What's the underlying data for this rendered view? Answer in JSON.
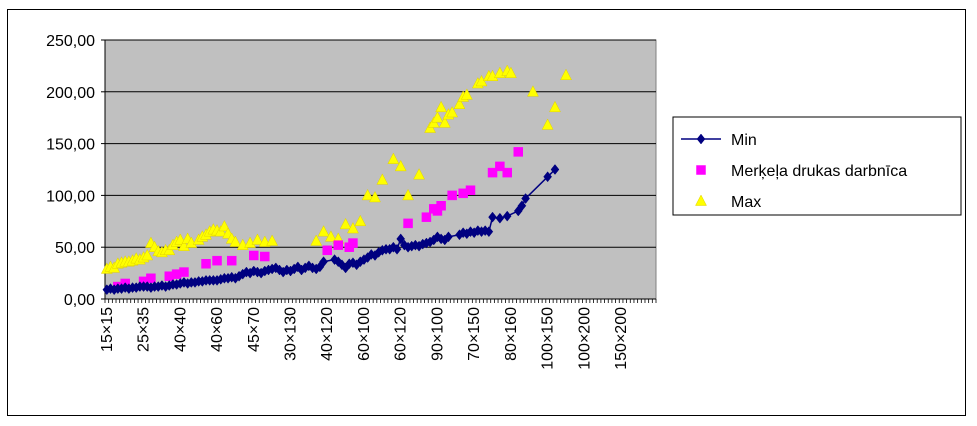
{
  "chart_data": {
    "type": "scatter",
    "title": "",
    "xlabel": "",
    "ylabel": "",
    "ylim": [
      0,
      250
    ],
    "yticks": [
      "0,00",
      "50,00",
      "100,00",
      "150,00",
      "200,00",
      "250,00"
    ],
    "ytick_values": [
      0,
      50,
      100,
      150,
      200,
      250
    ],
    "x_count": 150,
    "x_tick_labels": [
      {
        "index": 1,
        "label": "15×15"
      },
      {
        "index": 11,
        "label": "25×35"
      },
      {
        "index": 21,
        "label": "40×40"
      },
      {
        "index": 31,
        "label": "40×60"
      },
      {
        "index": 41,
        "label": "45×70"
      },
      {
        "index": 51,
        "label": "30×130"
      },
      {
        "index": 61,
        "label": "40×120"
      },
      {
        "index": 71,
        "label": "60×100"
      },
      {
        "index": 81,
        "label": "60×120"
      },
      {
        "index": 91,
        "label": "90×100"
      },
      {
        "index": 101,
        "label": "70×150"
      },
      {
        "index": 111,
        "label": "80×160"
      },
      {
        "index": 121,
        "label": "100×150"
      },
      {
        "index": 131,
        "label": "100×200"
      },
      {
        "index": 141,
        "label": "150×200"
      }
    ],
    "grid": true,
    "legend_position": "right",
    "plot_background": "#c0c0c0",
    "series": [
      {
        "name": "Min",
        "color": "#000080",
        "marker": "diamond",
        "line": true,
        "points": [
          [
            1,
            9
          ],
          [
            2,
            10
          ],
          [
            3,
            9
          ],
          [
            4,
            10
          ],
          [
            5,
            10
          ],
          [
            6,
            11
          ],
          [
            7,
            10
          ],
          [
            8,
            11
          ],
          [
            9,
            11
          ],
          [
            10,
            12
          ],
          [
            11,
            12
          ],
          [
            12,
            12
          ],
          [
            13,
            11
          ],
          [
            14,
            12
          ],
          [
            15,
            12
          ],
          [
            16,
            13
          ],
          [
            17,
            12
          ],
          [
            18,
            13
          ],
          [
            19,
            14
          ],
          [
            20,
            14
          ],
          [
            21,
            15
          ],
          [
            22,
            16
          ],
          [
            23,
            15
          ],
          [
            24,
            16
          ],
          [
            25,
            16
          ],
          [
            26,
            17
          ],
          [
            27,
            17
          ],
          [
            28,
            18
          ],
          [
            29,
            18
          ],
          [
            30,
            18
          ],
          [
            31,
            18
          ],
          [
            32,
            19
          ],
          [
            33,
            20
          ],
          [
            34,
            20
          ],
          [
            35,
            21
          ],
          [
            36,
            20
          ],
          [
            37,
            22
          ],
          [
            38,
            24
          ],
          [
            39,
            26
          ],
          [
            40,
            25
          ],
          [
            41,
            27
          ],
          [
            42,
            26
          ],
          [
            43,
            25
          ],
          [
            44,
            27
          ],
          [
            45,
            28
          ],
          [
            46,
            29
          ],
          [
            47,
            30
          ],
          [
            48,
            28
          ],
          [
            49,
            26
          ],
          [
            50,
            28
          ],
          [
            51,
            27
          ],
          [
            52,
            29
          ],
          [
            53,
            31
          ],
          [
            54,
            28
          ],
          [
            55,
            30
          ],
          [
            56,
            32
          ],
          [
            57,
            30
          ],
          [
            58,
            29
          ],
          [
            59,
            31
          ],
          [
            60,
            36
          ],
          [
            63,
            38
          ],
          [
            64,
            36
          ],
          [
            65,
            33
          ],
          [
            66,
            30
          ],
          [
            67,
            34
          ],
          [
            68,
            35
          ],
          [
            69,
            33
          ],
          [
            70,
            36
          ],
          [
            71,
            38
          ],
          [
            72,
            40
          ],
          [
            73,
            43
          ],
          [
            74,
            42
          ],
          [
            75,
            45
          ],
          [
            76,
            47
          ],
          [
            77,
            48
          ],
          [
            78,
            48
          ],
          [
            79,
            50
          ],
          [
            80,
            48
          ],
          [
            81,
            58
          ],
          [
            82,
            52
          ],
          [
            83,
            50
          ],
          [
            84,
            51
          ],
          [
            85,
            52
          ],
          [
            86,
            51
          ],
          [
            87,
            53
          ],
          [
            88,
            54
          ],
          [
            89,
            55
          ],
          [
            90,
            57
          ],
          [
            91,
            60
          ],
          [
            92,
            58
          ],
          [
            93,
            57
          ],
          [
            94,
            60
          ],
          [
            97,
            62
          ],
          [
            98,
            64
          ],
          [
            99,
            63
          ],
          [
            100,
            65
          ],
          [
            101,
            64
          ],
          [
            102,
            66
          ],
          [
            103,
            65
          ],
          [
            104,
            66
          ],
          [
            105,
            65
          ],
          [
            106,
            79
          ],
          [
            108,
            78
          ],
          [
            110,
            80
          ],
          [
            113,
            85
          ],
          [
            114,
            90
          ],
          [
            115,
            97
          ],
          [
            121,
            118
          ],
          [
            123,
            125
          ]
        ]
      },
      {
        "name": "Merķeļa drukas darbnīca",
        "color": "#ff00ff",
        "marker": "square",
        "line": false,
        "points": [
          [
            4,
            12
          ],
          [
            6,
            15
          ],
          [
            11,
            17
          ],
          [
            13,
            20
          ],
          [
            18,
            22
          ],
          [
            20,
            24
          ],
          [
            22,
            26
          ],
          [
            28,
            34
          ],
          [
            31,
            37
          ],
          [
            35,
            37
          ],
          [
            41,
            42
          ],
          [
            44,
            41
          ],
          [
            61,
            47
          ],
          [
            64,
            52
          ],
          [
            67,
            50
          ],
          [
            68,
            54
          ],
          [
            83,
            73
          ],
          [
            88,
            79
          ],
          [
            90,
            87
          ],
          [
            91,
            85
          ],
          [
            92,
            90
          ],
          [
            95,
            100
          ],
          [
            98,
            102
          ],
          [
            100,
            105
          ],
          [
            106,
            122
          ],
          [
            108,
            128
          ],
          [
            110,
            122
          ],
          [
            113,
            142
          ]
        ]
      },
      {
        "name": "Max",
        "color": "#ffff00",
        "marker": "triangle",
        "line": false,
        "points": [
          [
            1,
            29
          ],
          [
            2,
            31
          ],
          [
            3,
            30
          ],
          [
            4,
            34
          ],
          [
            5,
            35
          ],
          [
            6,
            36
          ],
          [
            7,
            36
          ],
          [
            8,
            37
          ],
          [
            9,
            39
          ],
          [
            10,
            38
          ],
          [
            11,
            40
          ],
          [
            12,
            42
          ],
          [
            13,
            54
          ],
          [
            14,
            50
          ],
          [
            15,
            46
          ],
          [
            16,
            45
          ],
          [
            17,
            47
          ],
          [
            18,
            47
          ],
          [
            19,
            52
          ],
          [
            20,
            55
          ],
          [
            21,
            57
          ],
          [
            22,
            51
          ],
          [
            23,
            58
          ],
          [
            24,
            54
          ],
          [
            26,
            57
          ],
          [
            27,
            60
          ],
          [
            28,
            62
          ],
          [
            29,
            65
          ],
          [
            30,
            67
          ],
          [
            31,
            66
          ],
          [
            32,
            65
          ],
          [
            33,
            70
          ],
          [
            34,
            63
          ],
          [
            35,
            58
          ],
          [
            36,
            55
          ],
          [
            38,
            52
          ],
          [
            40,
            54
          ],
          [
            42,
            57
          ],
          [
            44,
            55
          ],
          [
            46,
            56
          ],
          [
            58,
            56
          ],
          [
            60,
            65
          ],
          [
            62,
            60
          ],
          [
            64,
            58
          ],
          [
            66,
            72
          ],
          [
            68,
            68
          ],
          [
            70,
            75
          ],
          [
            72,
            100
          ],
          [
            74,
            98
          ],
          [
            76,
            115
          ],
          [
            79,
            135
          ],
          [
            81,
            128
          ],
          [
            83,
            100
          ],
          [
            86,
            120
          ],
          [
            89,
            165
          ],
          [
            90,
            170
          ],
          [
            91,
            175
          ],
          [
            92,
            185
          ],
          [
            93,
            170
          ],
          [
            94,
            178
          ],
          [
            95,
            180
          ],
          [
            97,
            188
          ],
          [
            98,
            195
          ],
          [
            99,
            197
          ],
          [
            102,
            208
          ],
          [
            103,
            210
          ],
          [
            105,
            215
          ],
          [
            106,
            215
          ],
          [
            108,
            218
          ],
          [
            110,
            220
          ],
          [
            111,
            218
          ],
          [
            117,
            200
          ],
          [
            121,
            168
          ],
          [
            123,
            185
          ],
          [
            126,
            216
          ]
        ]
      }
    ]
  }
}
